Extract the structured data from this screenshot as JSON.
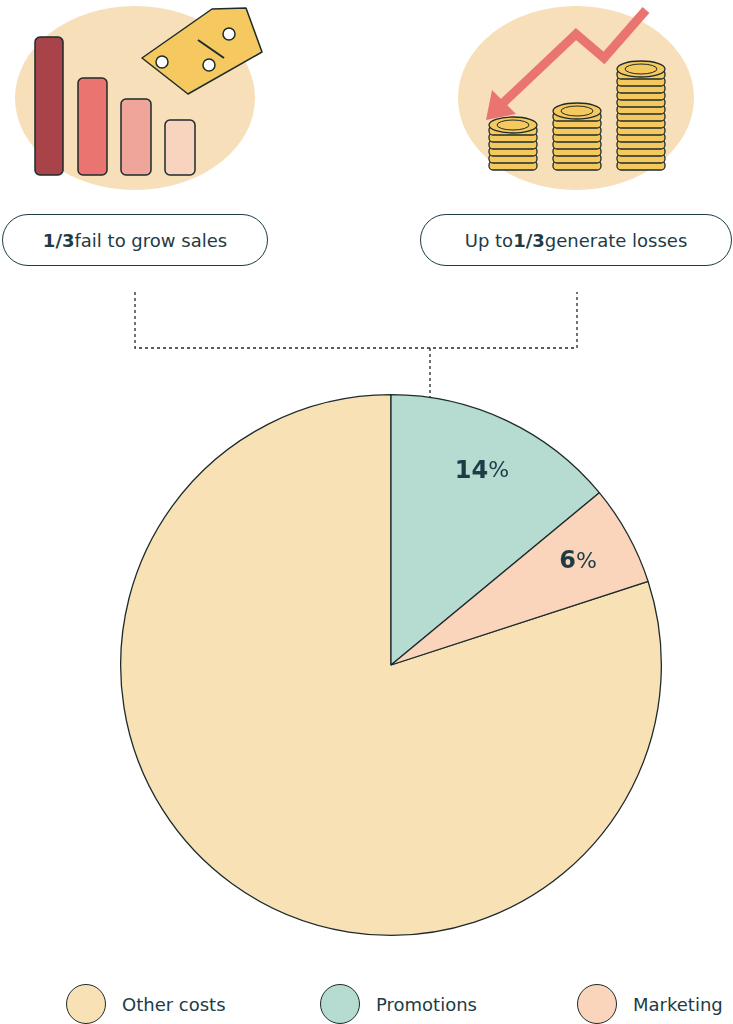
{
  "chart_data": {
    "type": "pie",
    "categories": [
      "Other costs",
      "Promotions",
      "Marketing"
    ],
    "values": [
      80,
      14,
      6
    ],
    "value_labels": [
      null,
      "14%",
      "6%"
    ],
    "data_labels": true,
    "colors": [
      "#f9e1b6",
      "#b6dcd2",
      "#fbd4bc"
    ],
    "legend": "bottom",
    "annotations": [
      "1/3 fail to grow sales",
      "Up to 1/3 generate losses"
    ]
  }
}
